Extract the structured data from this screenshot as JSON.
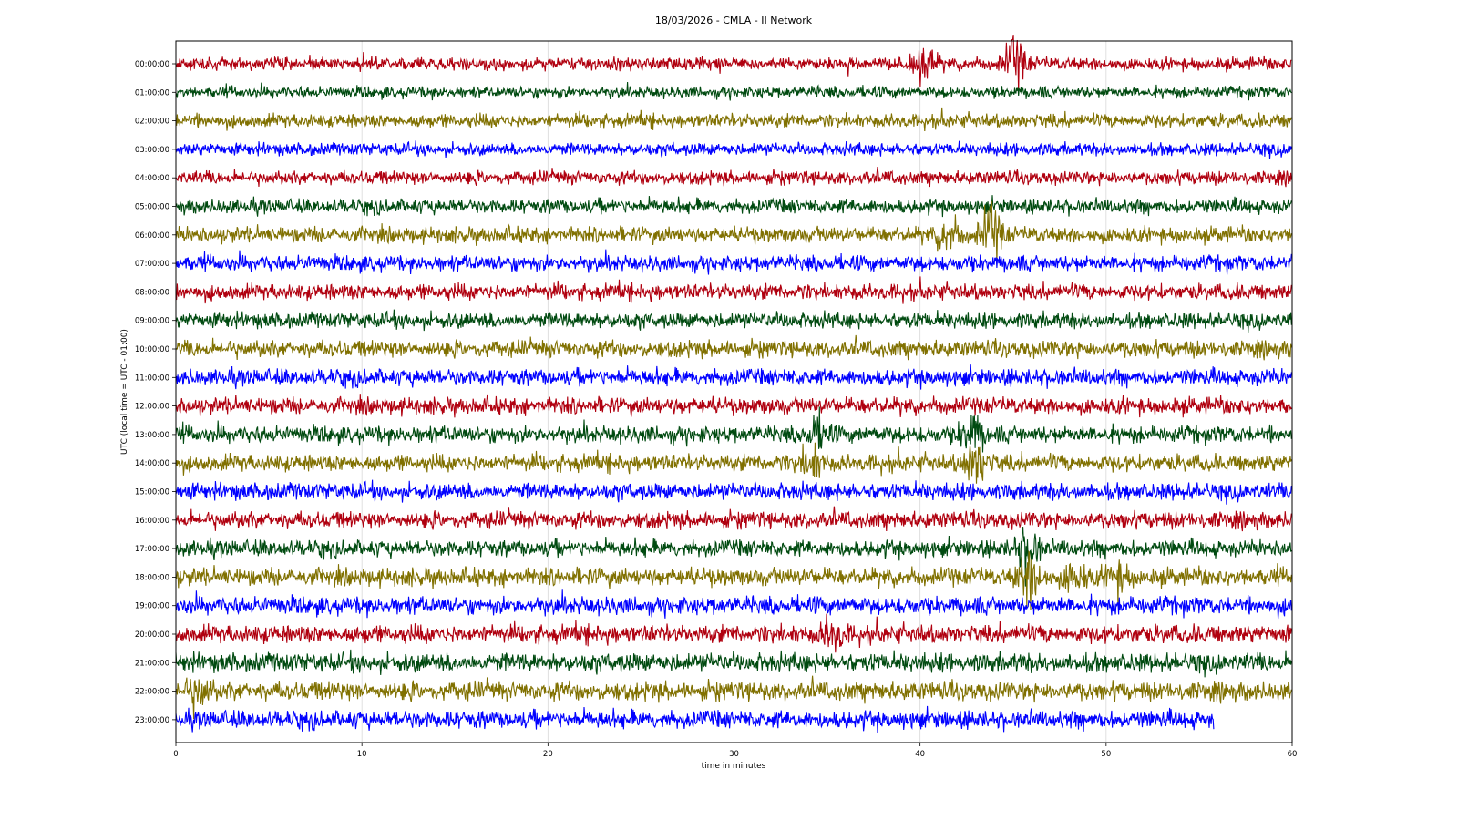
{
  "chart_data": {
    "type": "line",
    "title": "18/03/2026 - CMLA - II Network",
    "xlabel": "time in minutes",
    "ylabel": "UTC (local time = UTC - 01:00)",
    "xlim": [
      0,
      60
    ],
    "x_ticks": [
      "0",
      "10",
      "20",
      "30",
      "40",
      "50",
      "60"
    ],
    "grid": true,
    "row_colors": [
      "#b0000f",
      "#004a10",
      "#807000",
      "#0000ff"
    ],
    "series": [
      {
        "label": "00:00:00",
        "end_minute": 60,
        "amplitude": 0.6,
        "events": [
          {
            "minute": 40.3,
            "strength": 2.0
          },
          {
            "minute": 45.1,
            "strength": 3.4
          }
        ]
      },
      {
        "label": "01:00:00",
        "end_minute": 60,
        "amplitude": 0.55,
        "events": []
      },
      {
        "label": "02:00:00",
        "end_minute": 60,
        "amplitude": 0.65,
        "events": []
      },
      {
        "label": "03:00:00",
        "end_minute": 60,
        "amplitude": 0.6,
        "events": []
      },
      {
        "label": "04:00:00",
        "end_minute": 60,
        "amplitude": 0.65,
        "events": []
      },
      {
        "label": "05:00:00",
        "end_minute": 60,
        "amplitude": 0.7,
        "events": []
      },
      {
        "label": "06:00:00",
        "end_minute": 60,
        "amplitude": 0.75,
        "events": [
          {
            "minute": 41.5,
            "strength": 1.8
          },
          {
            "minute": 43.8,
            "strength": 3.0
          }
        ]
      },
      {
        "label": "07:00:00",
        "end_minute": 60,
        "amplitude": 0.75,
        "events": []
      },
      {
        "label": "08:00:00",
        "end_minute": 60,
        "amplitude": 0.75,
        "events": []
      },
      {
        "label": "09:00:00",
        "end_minute": 60,
        "amplitude": 0.75,
        "events": []
      },
      {
        "label": "10:00:00",
        "end_minute": 60,
        "amplitude": 0.8,
        "events": []
      },
      {
        "label": "11:00:00",
        "end_minute": 60,
        "amplitude": 0.8,
        "events": []
      },
      {
        "label": "12:00:00",
        "end_minute": 60,
        "amplitude": 0.8,
        "events": []
      },
      {
        "label": "13:00:00",
        "end_minute": 60,
        "amplitude": 0.8,
        "events": [
          {
            "minute": 34.5,
            "strength": 1.6
          },
          {
            "minute": 42.8,
            "strength": 2.0
          }
        ]
      },
      {
        "label": "14:00:00",
        "end_minute": 60,
        "amplitude": 0.8,
        "events": [
          {
            "minute": 34.2,
            "strength": 1.7
          },
          {
            "minute": 43.0,
            "strength": 2.2
          }
        ]
      },
      {
        "label": "15:00:00",
        "end_minute": 60,
        "amplitude": 0.8,
        "events": []
      },
      {
        "label": "16:00:00",
        "end_minute": 60,
        "amplitude": 0.8,
        "events": []
      },
      {
        "label": "17:00:00",
        "end_minute": 60,
        "amplitude": 0.8,
        "events": [
          {
            "minute": 45.8,
            "strength": 2.4
          }
        ]
      },
      {
        "label": "18:00:00",
        "end_minute": 60,
        "amplitude": 0.85,
        "events": [
          {
            "minute": 45.9,
            "strength": 2.8
          },
          {
            "minute": 48.3,
            "strength": 1.5
          },
          {
            "minute": 50.6,
            "strength": 1.4
          }
        ]
      },
      {
        "label": "19:00:00",
        "end_minute": 60,
        "amplitude": 0.85,
        "events": []
      },
      {
        "label": "20:00:00",
        "end_minute": 60,
        "amplitude": 0.85,
        "events": [
          {
            "minute": 35.3,
            "strength": 1.5
          }
        ]
      },
      {
        "label": "21:00:00",
        "end_minute": 60,
        "amplitude": 0.9,
        "events": []
      },
      {
        "label": "22:00:00",
        "end_minute": 60,
        "amplitude": 0.9,
        "events": [
          {
            "minute": 1.2,
            "strength": 1.5
          }
        ]
      },
      {
        "label": "23:00:00",
        "end_minute": 55.8,
        "amplitude": 0.85,
        "events": []
      }
    ]
  }
}
